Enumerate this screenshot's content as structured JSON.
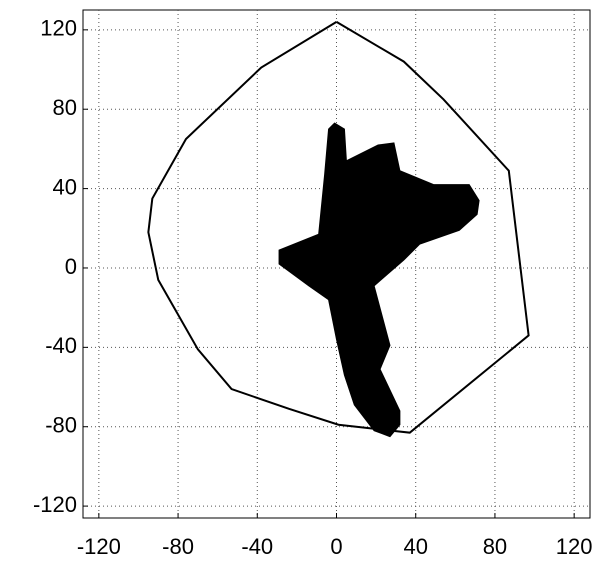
{
  "chart_data": {
    "type": "line",
    "xlim": [
      -128,
      128
    ],
    "ylim": [
      -126,
      130
    ],
    "xticks": [
      -120,
      -80,
      -40,
      0,
      40,
      80,
      120
    ],
    "yticks": [
      -120,
      -80,
      -40,
      0,
      40,
      80,
      120
    ],
    "grid": true,
    "series": [
      {
        "color": "#000000",
        "fill": false,
        "x": [
          0,
          34,
          54,
          87,
          97,
          37,
          1,
          -24,
          -53,
          -70,
          -90,
          -95,
          -93,
          -76,
          -38,
          0
        ],
        "values": [
          124,
          104,
          85,
          49,
          -34,
          -83,
          -79,
          -71,
          -61,
          -41,
          -6,
          18,
          35,
          65,
          101,
          124
        ]
      },
      {
        "color": "#000000",
        "fill": true,
        "x": [
          -1,
          4,
          5,
          21,
          29,
          32,
          49,
          67,
          72,
          71,
          62,
          42,
          34,
          19,
          27,
          22,
          32,
          32,
          27,
          19,
          9,
          4,
          0,
          -4,
          -14,
          -29,
          -29,
          -9,
          -6,
          -4
        ],
        "values": [
          73,
          70,
          54,
          62,
          63,
          49,
          42,
          42,
          34,
          27,
          19,
          12,
          4,
          -9,
          -39,
          -51,
          -72,
          -79,
          -85,
          -82,
          -69,
          -54,
          -36,
          -16,
          -9,
          2,
          9,
          17,
          47,
          70
        ]
      }
    ]
  }
}
